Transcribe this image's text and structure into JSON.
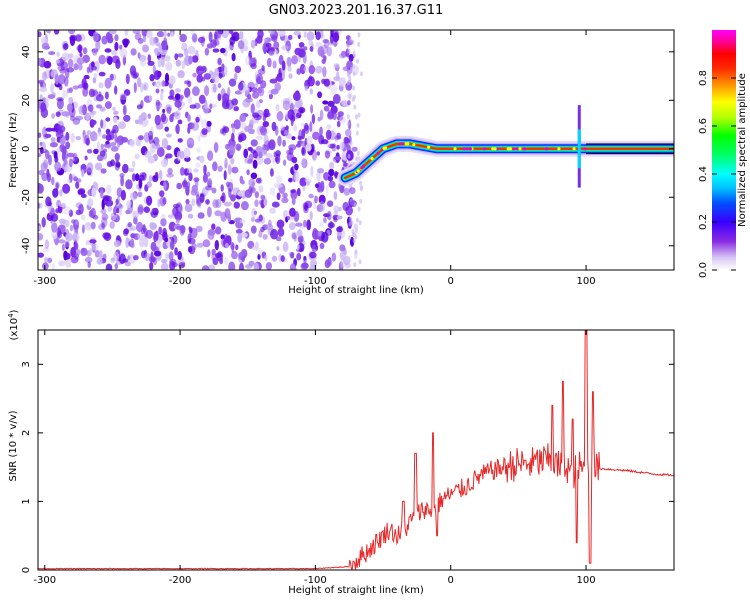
{
  "title": "GN03.2023.201.16.37.G11",
  "chart_data": [
    {
      "type": "heatmap",
      "xlabel": "Height of straight line (km)",
      "ylabel": "Frequency (Hz)",
      "xlim": [
        -305,
        165
      ],
      "ylim": [
        -50,
        49
      ],
      "xticks": [
        -300,
        -200,
        -100,
        0,
        100
      ],
      "yticks": [
        -40,
        -20,
        0,
        20,
        40
      ],
      "colorbar": {
        "label": "Normalized spectral amplitude",
        "range": [
          0,
          1
        ],
        "ticks": [
          0.0,
          0.2,
          0.4,
          0.6,
          0.8
        ],
        "colors": [
          "#ffffff",
          "#d8c8f4",
          "#8a2be2",
          "#5a00dd",
          "#0000ff",
          "#00bfff",
          "#00ffff",
          "#00ff66",
          "#00ff00",
          "#aaff00",
          "#ffff00",
          "#ffa500",
          "#ff2a00",
          "#ff0000",
          "#ff0090",
          "#ff00ff"
        ]
      },
      "noise_region": {
        "x_start": -305,
        "x_end": -70,
        "dominant_amplitude": 0.15
      },
      "signal_trace": {
        "x": [
          -78,
          -70,
          -60,
          -50,
          -40,
          -30,
          -20,
          -10,
          0,
          20,
          40,
          60,
          80,
          95,
          100,
          120,
          140,
          165
        ],
        "y": [
          -12,
          -10,
          -5,
          0,
          2,
          2,
          1,
          0,
          0,
          0,
          0,
          0,
          0,
          0,
          0,
          0,
          0,
          0
        ],
        "peak_amplitude": 0.95
      }
    },
    {
      "type": "line",
      "xlabel": "Height of straight line (km)",
      "ylabel": "SNR (10 * v/v)",
      "scale_label_base": "(x10",
      "scale_label_exp": "4",
      "scale_label_close": ")",
      "xlim": [
        -305,
        165
      ],
      "ylim": [
        0,
        3.5
      ],
      "xticks": [
        -300,
        -200,
        -100,
        0,
        100
      ],
      "yticks": [
        0,
        1,
        2,
        3
      ],
      "color": "#e8292a",
      "series": [
        {
          "x": [
            -305,
            -250,
            -200,
            -150,
            -100,
            -75,
            -60,
            -50,
            -45,
            -40,
            -35,
            -30,
            -25,
            -20,
            -15,
            -10,
            -5,
            0,
            10,
            20,
            30,
            40,
            50,
            60,
            70,
            75,
            80,
            85,
            90,
            95,
            98,
            100,
            102,
            105,
            110,
            130,
            150,
            165
          ],
          "y": [
            0.02,
            0.02,
            0.02,
            0.02,
            0.02,
            0.05,
            0.3,
            0.5,
            0.6,
            0.5,
            0.55,
            0.7,
            0.8,
            0.9,
            0.85,
            0.95,
            1.05,
            1.1,
            1.2,
            1.35,
            1.45,
            1.5,
            1.55,
            1.55,
            1.6,
            1.6,
            1.5,
            1.55,
            1.4,
            1.5,
            1.45,
            1.5,
            1.45,
            1.5,
            1.48,
            1.45,
            1.4,
            1.38
          ]
        }
      ],
      "spikes": [
        {
          "x": -35,
          "y": 1.0
        },
        {
          "x": -26,
          "y": 1.7
        },
        {
          "x": -13,
          "y": 2.0
        },
        {
          "x": -10,
          "y": 0.5
        },
        {
          "x": 55,
          "y": 1.6
        },
        {
          "x": 75,
          "y": 2.4
        },
        {
          "x": 83,
          "y": 2.75
        },
        {
          "x": 90,
          "y": 2.2
        },
        {
          "x": 93,
          "y": 0.4
        },
        {
          "x": 100,
          "y": 3.55
        },
        {
          "x": 103,
          "y": 0.1
        },
        {
          "x": 105,
          "y": 2.6
        }
      ]
    }
  ]
}
